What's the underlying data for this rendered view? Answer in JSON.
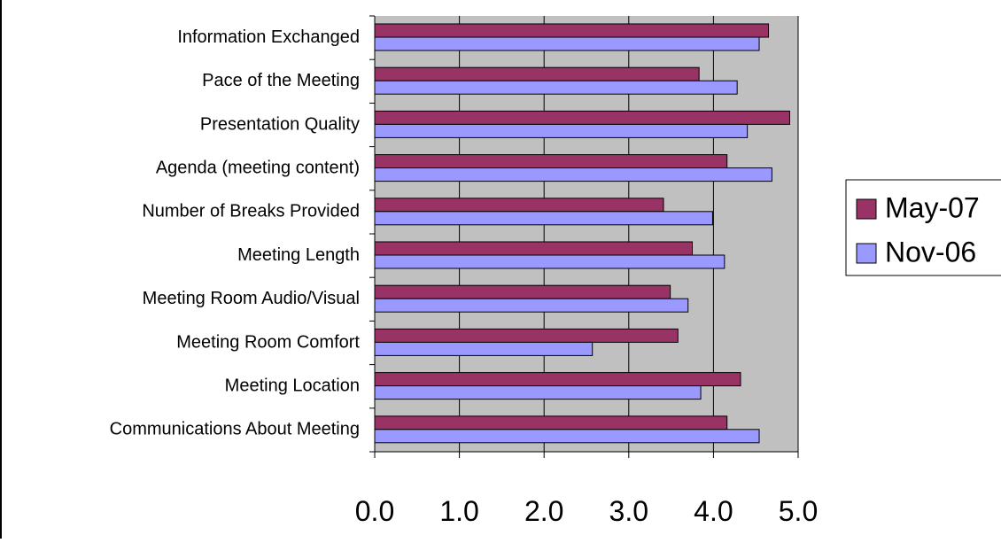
{
  "chart_data": {
    "type": "bar",
    "orientation": "horizontal",
    "categories": [
      "Information Exchanged",
      "Pace of the Meeting",
      "Presentation Quality",
      "Agenda (meeting content)",
      "Number of Breaks Provided",
      "Meeting Length",
      "Meeting Room Audio/Visual",
      "Meeting Room Comfort",
      "Meeting Location",
      "Communications About Meeting"
    ],
    "series": [
      {
        "name": "May-07",
        "color": "#993366",
        "values": [
          4.65,
          3.83,
          4.9,
          4.16,
          3.41,
          3.75,
          3.49,
          3.58,
          4.32,
          4.16
        ]
      },
      {
        "name": "Nov-06",
        "color": "#9999ff",
        "values": [
          4.54,
          4.28,
          4.4,
          4.69,
          3.99,
          4.13,
          3.7,
          2.57,
          3.85,
          4.54
        ]
      }
    ],
    "xlim": [
      0,
      5
    ],
    "xticks": [
      "0.0",
      "1.0",
      "2.0",
      "3.0",
      "4.0",
      "5.0"
    ],
    "grid": true,
    "plot_background": "#c0c0c0",
    "legend_position": "right",
    "title": "",
    "xlabel": "",
    "ylabel": ""
  }
}
